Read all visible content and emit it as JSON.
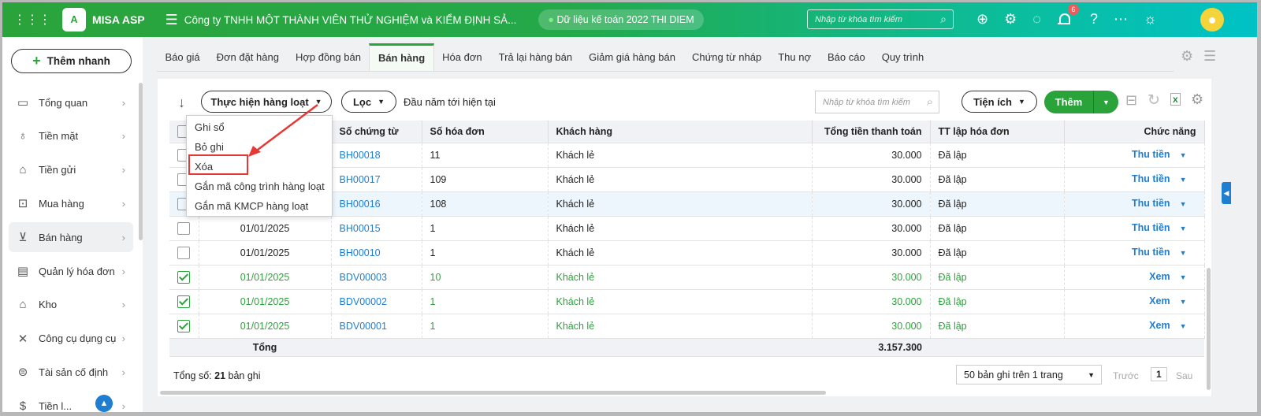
{
  "header": {
    "app_name": "MISA ASP",
    "company": "Công ty TNHH MỘT THÀNH VIÊN THỬ NGHIỆM và KIỂM ĐỊNH SẢ...",
    "data_label": "Dữ liệu kế toán 2022 THI DIEM",
    "search_placeholder": "Nhập từ khóa tìm kiếm",
    "notification_count": "6",
    "icons": [
      "download-icon",
      "gear-icon",
      "chat-icon",
      "bell-icon",
      "help-icon",
      "more-icon",
      "idea-icon",
      "avatar"
    ]
  },
  "sidebar": {
    "quick_add": "Thêm nhanh",
    "items": [
      {
        "label": "Tổng quan",
        "icon": "dashboard-icon"
      },
      {
        "label": "Tiền mặt",
        "icon": "money-bag-icon"
      },
      {
        "label": "Tiền gửi",
        "icon": "bank-icon"
      },
      {
        "label": "Mua hàng",
        "icon": "purchase-icon"
      },
      {
        "label": "Bán hàng",
        "icon": "cart-icon",
        "active": true
      },
      {
        "label": "Quản lý hóa đơn",
        "icon": "invoice-icon"
      },
      {
        "label": "Kho",
        "icon": "warehouse-icon"
      },
      {
        "label": "Công cụ dụng cụ",
        "icon": "tools-icon"
      },
      {
        "label": "Tài sản cố định",
        "icon": "car-icon"
      },
      {
        "label": "Tiền l...",
        "icon": "salary-icon"
      }
    ]
  },
  "tabs": [
    "Báo giá",
    "Đơn đặt hàng",
    "Hợp đồng bán",
    "Bán hàng",
    "Hóa đơn",
    "Trả lại hàng bán",
    "Giảm giá hàng bán",
    "Chứng từ nháp",
    "Thu nợ",
    "Báo cáo",
    "Quy trình"
  ],
  "active_tab": "Bán hàng",
  "toolbar": {
    "batch": "Thực hiện hàng loạt",
    "filter": "Lọc",
    "period": "Đầu năm tới hiện tại",
    "search_placeholder": "Nhập từ khóa tìm kiếm",
    "utilities": "Tiện ích",
    "add": "Thêm"
  },
  "batch_menu": [
    "Ghi sổ",
    "Bỏ ghi",
    "Xóa",
    "Gắn mã công trình hàng loạt",
    "Gắn mã KMCP hàng loạt"
  ],
  "table": {
    "columns": [
      "",
      "Số chứng từ",
      "Số hóa đơn",
      "Khách hàng",
      "Tổng tiền thanh toán",
      "TT lập hóa đơn",
      "Chức năng"
    ],
    "rows": [
      {
        "checked": false,
        "date": "",
        "doc": "BH00018",
        "inv": "11",
        "cust": "Khách lẻ",
        "total": "30.000",
        "status": "Đã lập",
        "action": "Thu tiền"
      },
      {
        "checked": false,
        "date": "",
        "doc": "BH00017",
        "inv": "109",
        "cust": "Khách lẻ",
        "total": "30.000",
        "status": "Đã lập",
        "action": "Thu tiền"
      },
      {
        "checked": false,
        "date": "",
        "doc": "BH00016",
        "inv": "108",
        "cust": "Khách lẻ",
        "total": "30.000",
        "status": "Đã lập",
        "action": "Thu tiền",
        "highlight": true
      },
      {
        "checked": false,
        "date": "01/01/2025",
        "doc": "BH00015",
        "inv": "1",
        "cust": "Khách lẻ",
        "total": "30.000",
        "status": "Đã lập",
        "action": "Thu tiền"
      },
      {
        "checked": false,
        "date": "01/01/2025",
        "doc": "BH00010",
        "inv": "1",
        "cust": "Khách lẻ",
        "total": "30.000",
        "status": "Đã lập",
        "action": "Thu tiền"
      },
      {
        "checked": true,
        "date": "01/01/2025",
        "doc": "BDV00003",
        "inv": "10",
        "cust": "Khách lẻ",
        "total": "30.000",
        "status": "Đã lập",
        "action": "Xem"
      },
      {
        "checked": true,
        "date": "01/01/2025",
        "doc": "BDV00002",
        "inv": "1",
        "cust": "Khách lẻ",
        "total": "30.000",
        "status": "Đã lập",
        "action": "Xem"
      },
      {
        "checked": true,
        "date": "01/01/2025",
        "doc": "BDV00001",
        "inv": "1",
        "cust": "Khách lẻ",
        "total": "30.000",
        "status": "Đã lập",
        "action": "Xem"
      }
    ],
    "total_label": "Tổng",
    "total_value": "3.157.300"
  },
  "footer": {
    "count_prefix": "Tổng số:",
    "count": "21",
    "count_suffix": "bản ghi",
    "page_size": "50 bản ghi trên 1 trang",
    "prev": "Trước",
    "page": "1",
    "next": "Sau"
  },
  "colors": {
    "brand": "#2ba33b",
    "link": "#1f7ed0",
    "highlight_box": "#e53935"
  }
}
